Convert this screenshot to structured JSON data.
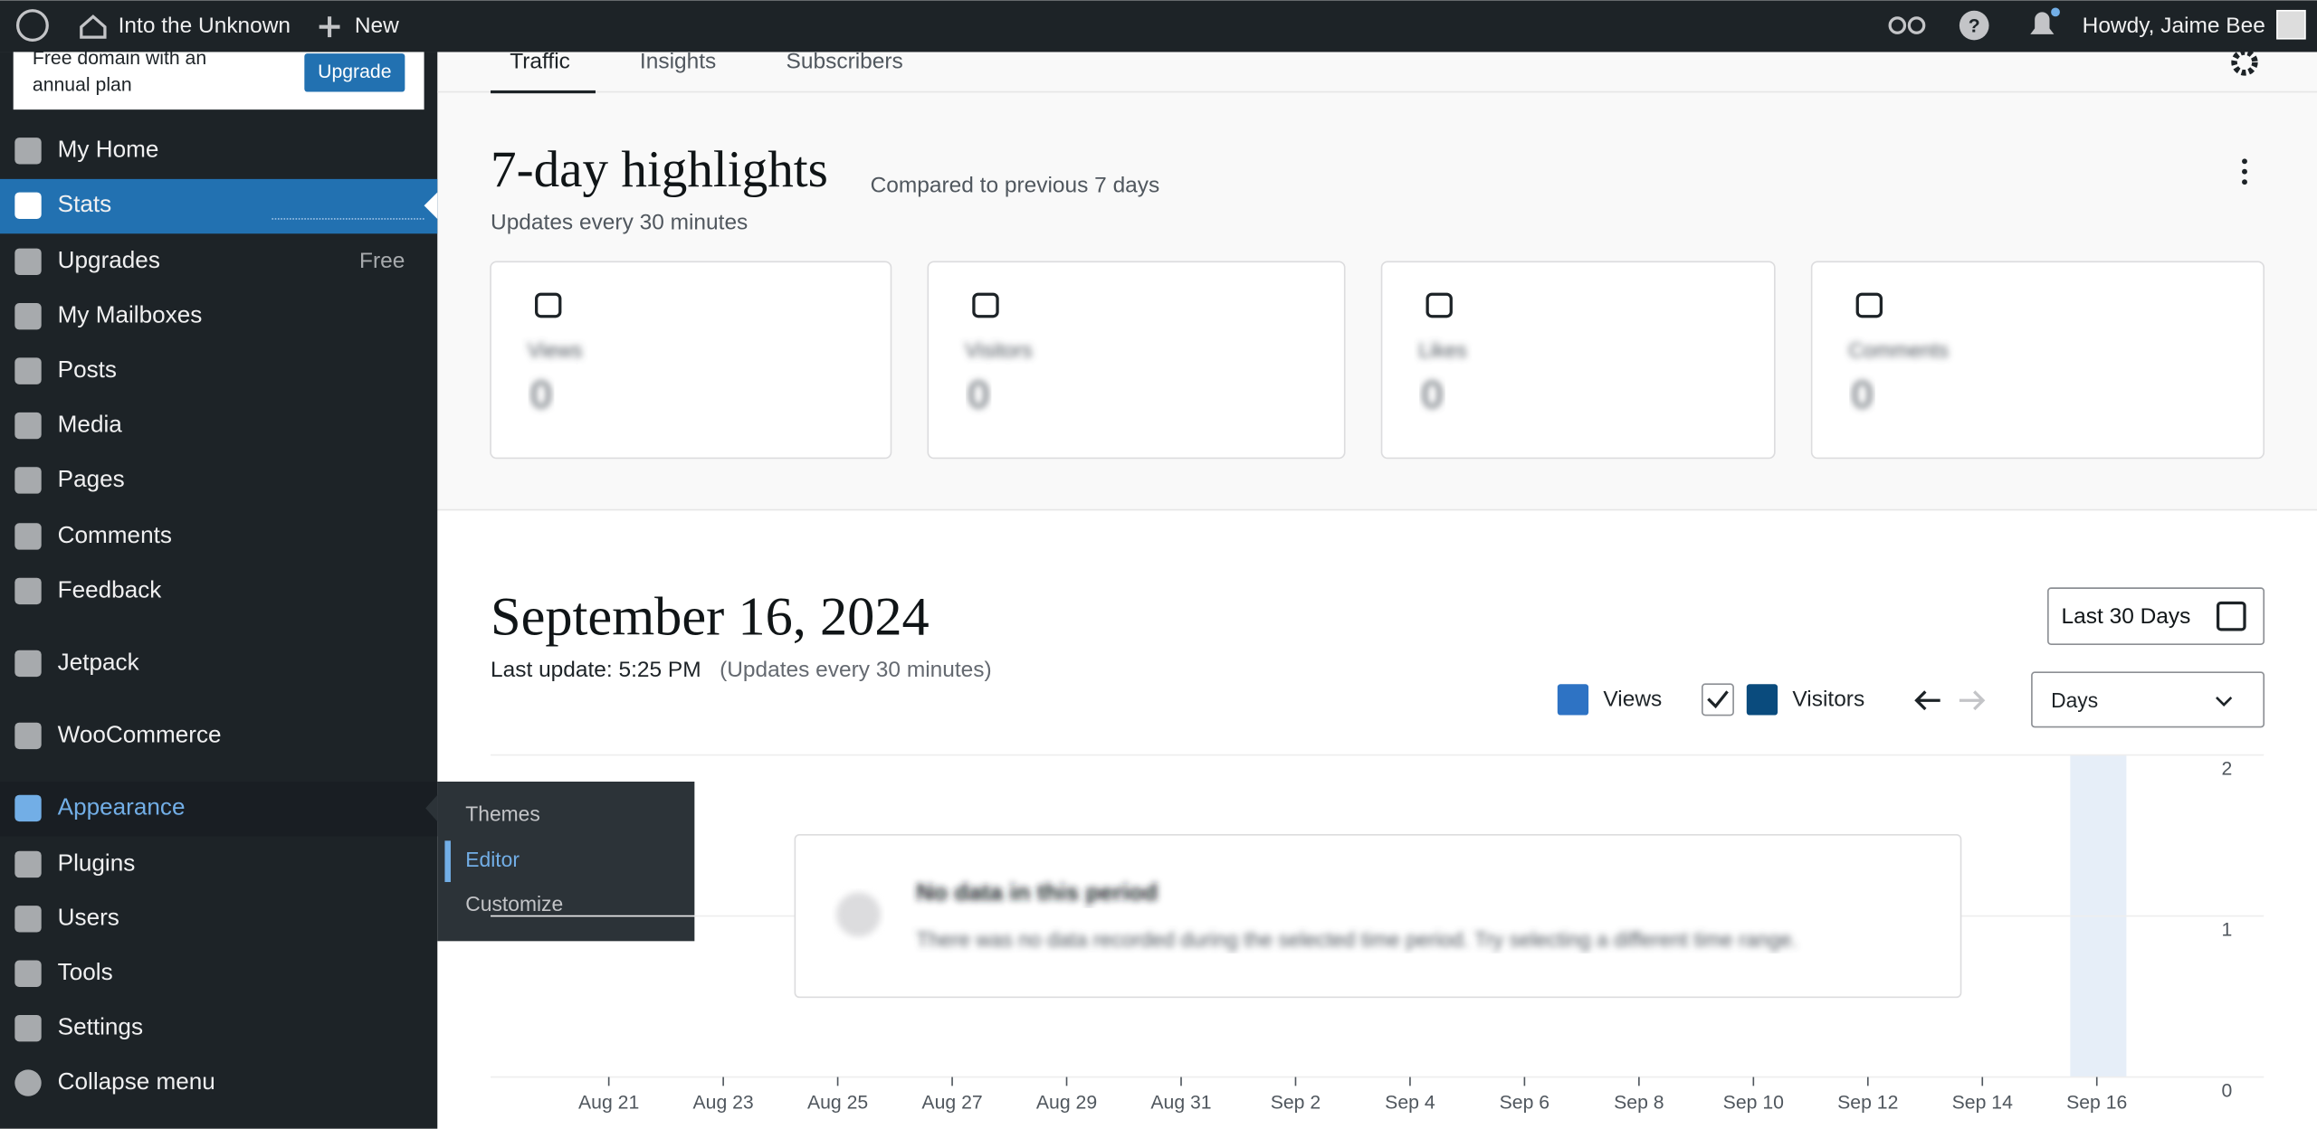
{
  "top_bar": {
    "site": "Into the Unknown",
    "new": "New",
    "greeting": "Howdy, Jaime Bee"
  },
  "promo": {
    "lines": [
      "Free domain with an",
      "annual plan"
    ],
    "button": "Upgrade"
  },
  "sidebar": {
    "items": [
      {
        "label": "My Home"
      },
      {
        "label": "Stats"
      },
      {
        "label": "Upgrades",
        "badge": "Free"
      },
      {
        "label": "My Mailboxes"
      },
      {
        "label": "Posts"
      },
      {
        "label": "Media"
      },
      {
        "label": "Pages"
      },
      {
        "label": "Comments"
      },
      {
        "label": "Feedback"
      },
      {
        "label": "Jetpack"
      },
      {
        "label": "WooCommerce"
      },
      {
        "label": "Appearance"
      },
      {
        "label": "Plugins"
      },
      {
        "label": "Users"
      },
      {
        "label": "Tools"
      },
      {
        "label": "Settings"
      },
      {
        "label": "Collapse menu"
      }
    ],
    "submenu": [
      "Themes",
      "Editor",
      "Customize"
    ]
  },
  "tabs": [
    "Traffic",
    "Insights",
    "Subscribers"
  ],
  "highlights": {
    "title": "7-day highlights",
    "comparison": "Compared to previous 7 days",
    "note": "Updates every 30 minutes",
    "cards": [
      {
        "label": "Views",
        "value": 0
      },
      {
        "label": "Visitors",
        "value": 0
      },
      {
        "label": "Likes",
        "value": 0
      },
      {
        "label": "Comments",
        "value": 0
      }
    ]
  },
  "date_section": {
    "title": "September 16, 2024",
    "last_update": "Last update: 5:25 PM",
    "note": "(Updates every 30 minutes)",
    "range_button": "Last 30 Days",
    "interval": "Days"
  },
  "chart_data": {
    "type": "bar",
    "categories": [
      "Aug 21",
      "Aug 23",
      "Aug 25",
      "Aug 27",
      "Aug 29",
      "Aug 31",
      "Sep 2",
      "Sep 4",
      "Sep 6",
      "Sep 8",
      "Sep 10",
      "Sep 12",
      "Sep 14",
      "Sep 16"
    ],
    "series": [
      {
        "name": "Views",
        "color": "#2e73c4"
      },
      {
        "name": "Visitors",
        "color": "#0a4b7d"
      }
    ],
    "ylim": [
      0,
      2
    ],
    "yticks": [
      0,
      1,
      2
    ],
    "grid": true,
    "empty_state": {
      "title": "No data in this period",
      "message": "There was no data recorded during the selected time period. Try selecting a different time range."
    }
  }
}
